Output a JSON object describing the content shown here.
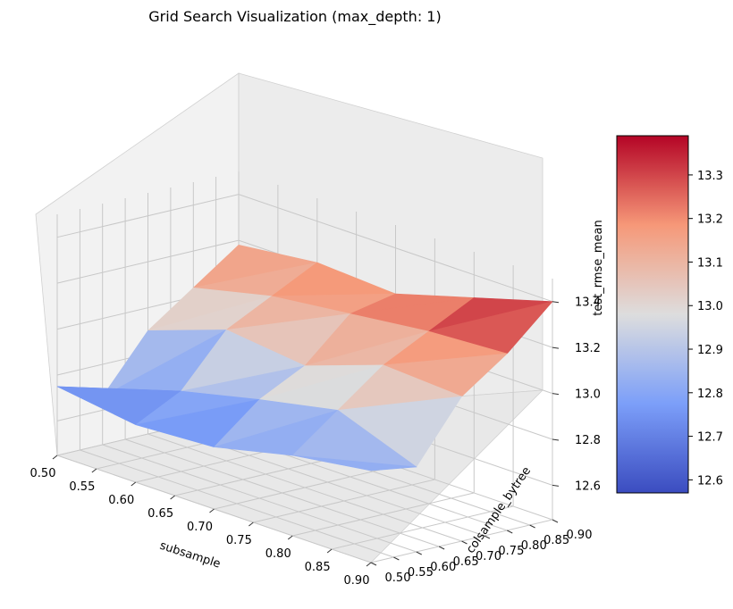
{
  "chart_data": {
    "type": "surface3d",
    "title": "Grid Search Visualization (max_depth: 1)",
    "xlabel": "subsample",
    "ylabel": "colsample_bytree",
    "zlabel": "test_rmse_mean",
    "x_ticks": [
      "0.50",
      "0.55",
      "0.60",
      "0.65",
      "0.70",
      "0.75",
      "0.80",
      "0.85",
      "0.90"
    ],
    "y_ticks": [
      "0.50",
      "0.55",
      "0.60",
      "0.65",
      "0.70",
      "0.75",
      "0.80",
      "0.85",
      "0.90"
    ],
    "z_ticks": [
      "12.6",
      "12.8",
      "13.0",
      "13.2",
      "13.4"
    ],
    "colorbar_ticks": [
      "12.6",
      "12.7",
      "12.8",
      "12.9",
      "13.0",
      "13.1",
      "13.2",
      "13.3"
    ],
    "xlim": [
      0.5,
      0.9
    ],
    "ylim": [
      0.5,
      0.9
    ],
    "zlim": [
      12.45,
      13.5
    ],
    "colorbar_range": [
      12.57,
      13.39
    ],
    "colormap": "coolwarm",
    "grid": true,
    "x": [
      0.5,
      0.6,
      0.7,
      0.8,
      0.9
    ],
    "y": [
      0.5,
      0.6,
      0.7,
      0.8,
      0.9
    ],
    "z": [
      [
        12.75,
        12.7,
        12.72,
        12.8,
        12.85
      ],
      [
        12.66,
        12.8,
        12.88,
        12.95,
        12.82
      ],
      [
        12.9,
        13.02,
        12.98,
        13.1,
        13.08
      ],
      [
        13.04,
        13.12,
        13.16,
        13.2,
        13.22
      ],
      [
        13.18,
        13.22,
        13.2,
        13.3,
        13.4
      ]
    ]
  }
}
